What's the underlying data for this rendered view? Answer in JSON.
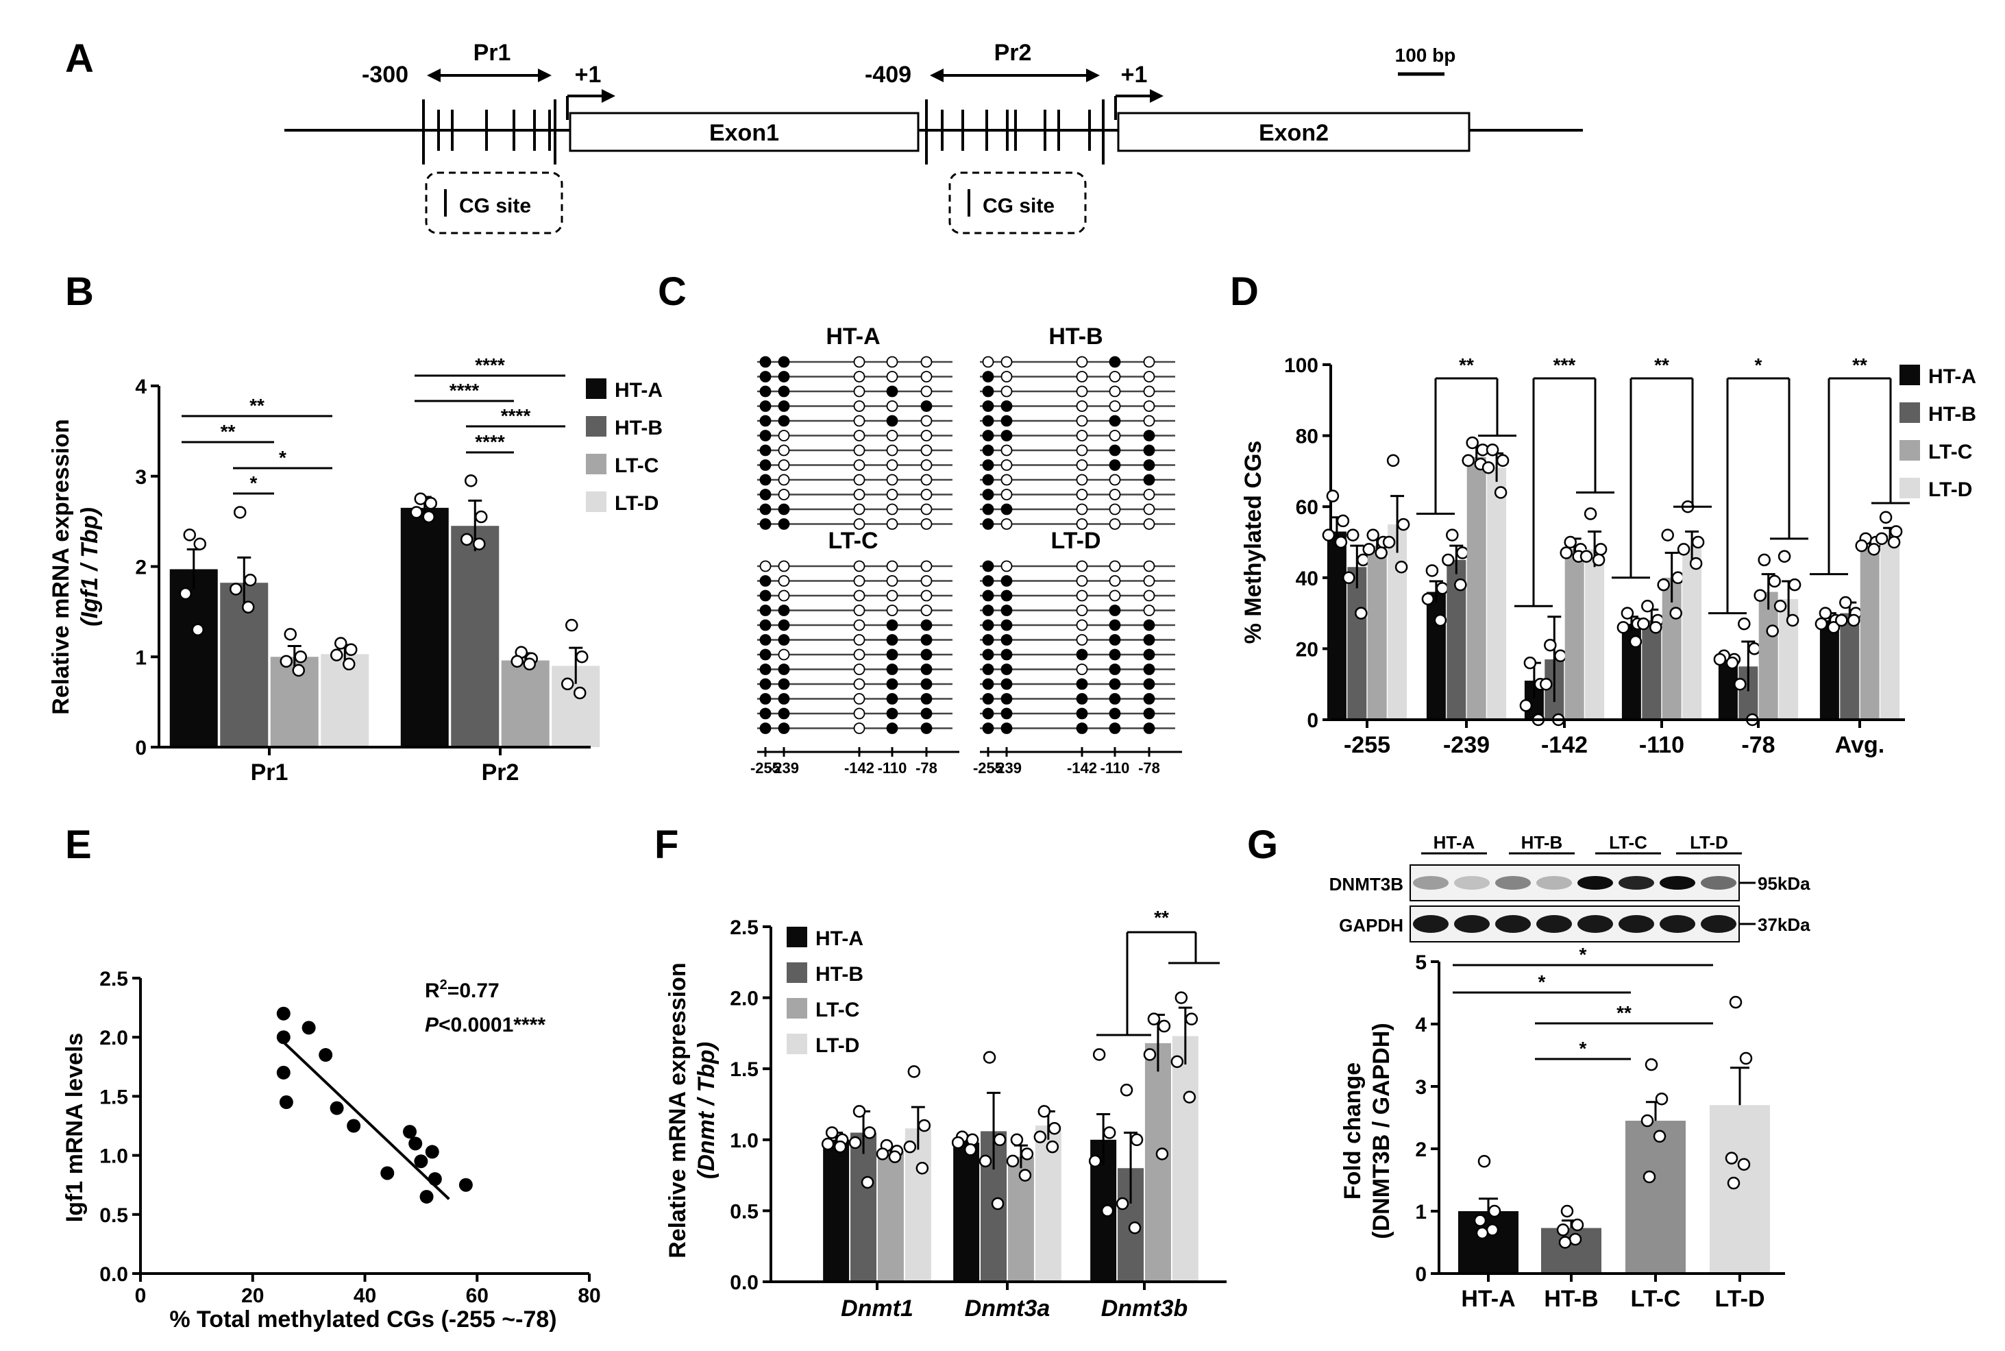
{
  "colors": {
    "HT-A": "#0a0a0a",
    "HT-B": "#5f5f5f",
    "LT-C": "#a6a6a6",
    "LT-D": "#dcdcdc"
  },
  "legend": [
    "HT-A",
    "HT-B",
    "LT-C",
    "LT-D"
  ],
  "panelA": {
    "label": "A",
    "pr1_start": "-300",
    "pr1_name": "Pr1",
    "tss1": "+1",
    "exon1": "Exon1",
    "pr2_start": "-409",
    "pr2_name": "Pr2",
    "tss2": "+1",
    "exon2": "Exon2",
    "scale": "100 bp",
    "cg_site": "CG site"
  },
  "panelC": {
    "label": "C",
    "titles": [
      "HT-A",
      "HT-B",
      "LT-C",
      "LT-D"
    ],
    "positions": [
      "-255",
      "-239",
      "-142",
      "-110",
      "-78"
    ],
    "patterns": {
      "HT-A": [
        "11000",
        "11000",
        "11010",
        "11001",
        "11010",
        "10000",
        "10000",
        "10000",
        "10000",
        "10000",
        "11000",
        "11000"
      ],
      "HT-B": [
        "00010",
        "10000",
        "10000",
        "11000",
        "11010",
        "11001",
        "10011",
        "10011",
        "10001",
        "10000",
        "11000",
        "10000"
      ],
      "LT-C": [
        "00000",
        "10000",
        "10000",
        "11000",
        "11011",
        "11011",
        "10011",
        "11011",
        "11011",
        "11011",
        "11011",
        "11011"
      ],
      "LT-D": [
        "10000",
        "11000",
        "11000",
        "11010",
        "11011",
        "11011",
        "11111",
        "11011",
        "11111",
        "11111",
        "11111",
        "11111"
      ]
    }
  },
  "chart_data": [
    {
      "panel": "B",
      "type": "bar",
      "categories": [
        "Pr1",
        "Pr2"
      ],
      "ylabel_line1": "Relative mRNA expression",
      "ylabel_line2": "(Igf1 / Tbp)",
      "ylim": [
        0,
        4
      ],
      "yticks": [
        "0",
        "1",
        "2",
        "3",
        "4"
      ],
      "series": [
        {
          "name": "HT-A",
          "values": [
            1.97,
            2.65
          ],
          "sem": [
            0.22,
            0.12
          ],
          "points": [
            [
              2.35,
              2.25,
              1.7,
              1.3
            ],
            [
              2.75,
              2.7,
              2.6,
              2.55
            ]
          ]
        },
        {
          "name": "HT-B",
          "values": [
            1.82,
            2.45
          ],
          "sem": [
            0.28,
            0.28
          ],
          "points": [
            [
              2.6,
              1.85,
              1.75,
              1.55
            ],
            [
              2.95,
              2.55,
              2.3,
              2.25
            ]
          ]
        },
        {
          "name": "LT-C",
          "values": [
            1.0,
            0.96
          ],
          "sem": [
            0.12,
            0.08
          ],
          "points": [
            [
              1.25,
              1.0,
              0.95,
              0.85
            ],
            [
              1.05,
              0.98,
              0.95,
              0.92
            ]
          ]
        },
        {
          "name": "LT-D",
          "values": [
            1.03,
            0.9
          ],
          "sem": [
            0.1,
            0.2
          ],
          "points": [
            [
              1.15,
              1.08,
              1.02,
              0.92
            ],
            [
              1.35,
              1.0,
              0.7,
              0.6
            ]
          ]
        }
      ],
      "annotations": [
        "**",
        "**",
        "*",
        "*",
        "****",
        "****",
        "****",
        "****"
      ]
    },
    {
      "panel": "D",
      "type": "bar",
      "categories": [
        "-255",
        "-239",
        "-142",
        "-110",
        "-78",
        "Avg."
      ],
      "ylabel": "% Methylated CGs",
      "ylim": [
        0,
        100
      ],
      "yticks": [
        "0",
        "20",
        "40",
        "60",
        "80",
        "100"
      ],
      "series": [
        {
          "name": "HT-A",
          "values": [
            53,
            36,
            11,
            27,
            17,
            28
          ],
          "sem": [
            4,
            3,
            5,
            2,
            1,
            2
          ],
          "points": [
            [
              63,
              56,
              52,
              50
            ],
            [
              42,
              37,
              34,
              28
            ],
            [
              16,
              10,
              4,
              0
            ],
            [
              30,
              27,
              26,
              22
            ],
            [
              18,
              17,
              17,
              16
            ],
            [
              30,
              28,
              27,
              26
            ]
          ]
        },
        {
          "name": "HT-B",
          "values": [
            43,
            45,
            17,
            28,
            15,
            30
          ],
          "sem": [
            6,
            4,
            12,
            3,
            7,
            3
          ],
          "points": [
            [
              52,
              45,
              40,
              30
            ],
            [
              52,
              47,
              45,
              38
            ],
            [
              21,
              18,
              10,
              0
            ],
            [
              32,
              28,
              27,
              26
            ],
            [
              27,
              20,
              10,
              0
            ],
            [
              33,
              30,
              28,
              28
            ]
          ]
        },
        {
          "name": "LT-C",
          "values": [
            49,
            74,
            48,
            40,
            36,
            49
          ],
          "sem": [
            2,
            3,
            3,
            7,
            5,
            1
          ],
          "points": [
            [
              52,
              50,
              48,
              47
            ],
            [
              78,
              76,
              73,
              72
            ],
            [
              50,
              48,
              47,
              46
            ],
            [
              52,
              40,
              38,
              30
            ],
            [
              45,
              39,
              35,
              25
            ],
            [
              51,
              50,
              49,
              48
            ]
          ]
        },
        {
          "name": "LT-D",
          "values": [
            55,
            71,
            48,
            49,
            34,
            52
          ],
          "sem": [
            8,
            4,
            5,
            4,
            5,
            2
          ],
          "points": [
            [
              73,
              55,
              50,
              43
            ],
            [
              76,
              73,
              71,
              64
            ],
            [
              58,
              48,
              46,
              45
            ],
            [
              60,
              50,
              48,
              44
            ],
            [
              46,
              38,
              32,
              28
            ],
            [
              57,
              53,
              51,
              50
            ]
          ]
        }
      ],
      "annotations": [
        "**",
        "***",
        "**",
        "*",
        "**"
      ]
    },
    {
      "panel": "E",
      "type": "scatter",
      "xlabel": "% Total methylated CGs (-255 ~-78)",
      "ylabel": "Igf1 mRNA levels",
      "xlim": [
        0,
        80
      ],
      "ylim": [
        0,
        2.5
      ],
      "xticks": [
        "0",
        "20",
        "40",
        "60",
        "80"
      ],
      "yticks": [
        "0.0",
        "0.5",
        "1.0",
        "1.5",
        "2.0",
        "2.5"
      ],
      "x": [
        25.5,
        25.5,
        25.5,
        26,
        30,
        33,
        35,
        38,
        44,
        48,
        49,
        50,
        51,
        52,
        52.5,
        58
      ],
      "y": [
        2.2,
        2.0,
        1.7,
        1.45,
        2.08,
        1.85,
        1.4,
        1.25,
        0.85,
        1.2,
        1.1,
        0.95,
        0.65,
        1.03,
        0.8,
        0.75
      ],
      "fit": {
        "x": [
          25,
          55
        ],
        "y": [
          1.98,
          0.63
        ]
      },
      "r2_label": "R",
      "r2_value": "=0.77",
      "p_label": "P",
      "p_value": "<0.0001****"
    },
    {
      "panel": "F",
      "type": "bar",
      "categories": [
        "Dnmt1",
        "Dnmt3a",
        "Dnmt3b"
      ],
      "ylabel_line1": "Relative mRNA expression",
      "ylabel_line2": "(Dnmt / Tbp)",
      "ylim": [
        0,
        2.5
      ],
      "yticks": [
        "0.0",
        "0.5",
        "1.0",
        "1.5",
        "2.0",
        "2.5"
      ],
      "series": [
        {
          "name": "HT-A",
          "values": [
            1.0,
            0.98,
            1.0
          ],
          "sem": [
            0.05,
            0.05,
            0.18
          ],
          "points": [
            [
              1.05,
              1.0,
              0.97,
              0.95
            ],
            [
              1.02,
              1.0,
              0.98,
              0.93
            ],
            [
              1.6,
              1.05,
              0.85,
              0.5
            ]
          ]
        },
        {
          "name": "HT-B",
          "values": [
            1.05,
            1.06,
            0.8
          ],
          "sem": [
            0.15,
            0.27,
            0.25
          ],
          "points": [
            [
              1.2,
              1.05,
              0.98,
              0.7
            ],
            [
              1.58,
              1.0,
              0.85,
              0.55
            ],
            [
              1.35,
              1.0,
              0.55,
              0.38
            ]
          ]
        },
        {
          "name": "LT-C",
          "values": [
            0.92,
            0.88,
            1.68
          ],
          "sem": [
            0.03,
            0.08,
            0.2
          ],
          "points": [
            [
              0.96,
              0.92,
              0.9,
              0.88
            ],
            [
              1.0,
              0.9,
              0.85,
              0.75
            ],
            [
              1.85,
              1.8,
              1.6,
              0.9
            ]
          ]
        },
        {
          "name": "LT-D",
          "values": [
            1.08,
            1.1,
            1.73
          ],
          "sem": [
            0.15,
            0.1,
            0.2
          ],
          "points": [
            [
              1.48,
              1.1,
              0.95,
              0.8
            ],
            [
              1.2,
              1.08,
              1.02,
              0.95
            ],
            [
              2.0,
              1.85,
              1.55,
              1.3
            ]
          ]
        }
      ],
      "annotations": [
        "**"
      ]
    },
    {
      "panel": "G",
      "type": "bar",
      "categories": [
        "HT-A",
        "HT-B",
        "LT-C",
        "LT-D"
      ],
      "ylabel_line1": "Fold change",
      "ylabel_line2": "(DNMT3B / GAPDH)",
      "ylim": [
        0,
        5
      ],
      "yticks": [
        "0",
        "1",
        "2",
        "3",
        "4",
        "5"
      ],
      "values": [
        1.0,
        0.73,
        2.45,
        2.7
      ],
      "sem": [
        0.2,
        0.12,
        0.3,
        0.6
      ],
      "points": [
        [
          1.8,
          1.0,
          0.85,
          0.7,
          0.65
        ],
        [
          1.0,
          0.78,
          0.7,
          0.55,
          0.5
        ],
        [
          3.35,
          2.8,
          2.45,
          2.2,
          1.55
        ],
        [
          4.35,
          3.45,
          1.85,
          1.75,
          1.45
        ]
      ],
      "annotations": [
        "*",
        "*",
        "**",
        "*"
      ],
      "blot": {
        "groups": [
          "HT-A",
          "HT-B",
          "LT-C",
          "LT-D"
        ],
        "bands": [
          "DNMT3B",
          "GAPDH"
        ],
        "sizes": [
          "95kDa",
          "37kDa"
        ],
        "intensity": [
          0.35,
          0.2,
          0.45,
          0.25,
          0.95,
          0.85,
          0.95,
          0.55
        ]
      }
    }
  ],
  "panel_labels": {
    "B": "B",
    "D": "D",
    "E": "E",
    "F": "F",
    "G": "G"
  }
}
